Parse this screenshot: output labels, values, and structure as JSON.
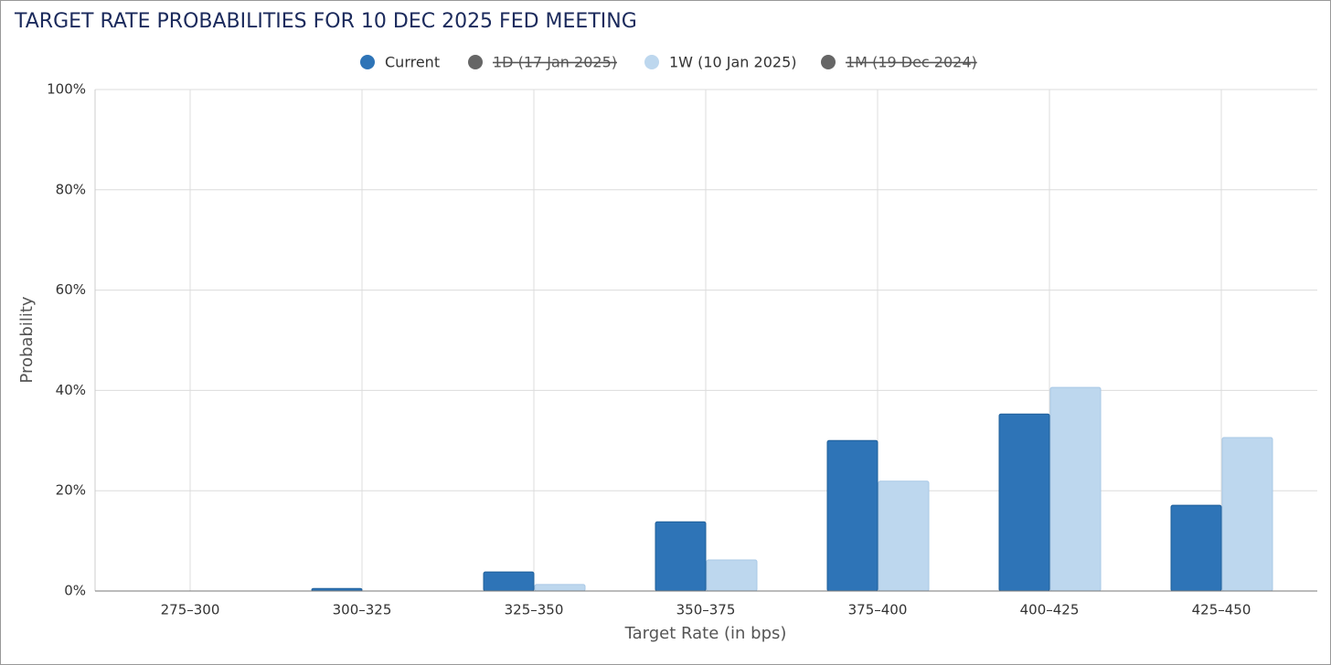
{
  "chart_data": {
    "type": "bar",
    "title": "TARGET RATE PROBABILITIES FOR 10 DEC 2025 FED MEETING",
    "x_label": "Target Rate (in bps)",
    "y_label": "Probability",
    "categories": [
      "275–300",
      "300–325",
      "325–350",
      "350–375",
      "375–400",
      "400–425",
      "425–450"
    ],
    "series": [
      {
        "name": "Current",
        "color": "#2e74b7",
        "visible": true,
        "values": [
          0,
          0.5,
          3.8,
          13.8,
          30.0,
          35.3,
          17.1
        ]
      },
      {
        "name": "1D (17 Jan 2025)",
        "color": "#666666",
        "visible": false
      },
      {
        "name": "1W (10 Jan 2025)",
        "color": "#bdd7ee",
        "visible": true,
        "values": [
          0,
          0,
          1.3,
          6.2,
          21.9,
          40.6,
          30.6
        ]
      },
      {
        "name": "1M (19 Dec 2024)",
        "color": "#666666",
        "visible": false
      }
    ],
    "ylim": [
      0,
      100
    ],
    "yticks": [
      {
        "value": 0,
        "label": "0%"
      },
      {
        "value": 20,
        "label": "20%"
      },
      {
        "value": 40,
        "label": "40%"
      },
      {
        "value": 60,
        "label": "60%"
      },
      {
        "value": 80,
        "label": "80%"
      },
      {
        "value": 100,
        "label": "100%"
      }
    ],
    "grid": true
  }
}
